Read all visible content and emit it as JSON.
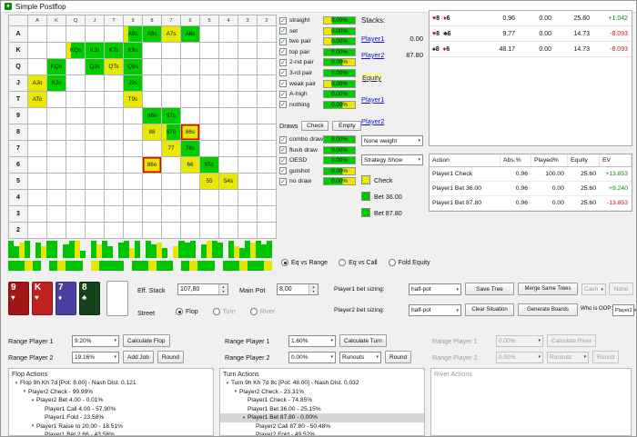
{
  "window": {
    "title": "Simple Postflop"
  },
  "icons": {
    "check": "✓",
    "dropdown_arrow": "▾",
    "spin_up": "▲",
    "spin_down": "▼",
    "tree_expanded": "▾"
  },
  "matrix": {
    "col_headers": [
      "A",
      "K",
      "Q",
      "J",
      "T",
      "9",
      "8",
      "7",
      "6",
      "5",
      "4",
      "3",
      "2"
    ],
    "row_headers": [
      "A",
      "K",
      "Q",
      "J",
      "T",
      "9",
      "8",
      "7",
      "6",
      "5",
      "4",
      "3",
      "2"
    ],
    "cells": [
      {
        "r": 0,
        "c": 5,
        "t": "A9s",
        "s": "gy"
      },
      {
        "r": 0,
        "c": 6,
        "t": "A8s",
        "s": "g"
      },
      {
        "r": 0,
        "c": 7,
        "t": "A7s",
        "s": "y"
      },
      {
        "r": 0,
        "c": 8,
        "t": "A6s",
        "s": "g"
      },
      {
        "r": 1,
        "c": 2,
        "t": "KQs",
        "s": "gy"
      },
      {
        "r": 1,
        "c": 3,
        "t": "KJs",
        "s": "g"
      },
      {
        "r": 1,
        "c": 4,
        "t": "KTs",
        "s": "g"
      },
      {
        "r": 1,
        "c": 5,
        "t": "K9s",
        "s": "g"
      },
      {
        "r": 2,
        "c": 1,
        "t": "KQo",
        "s": "g"
      },
      {
        "r": 2,
        "c": 3,
        "t": "QJs",
        "s": "g"
      },
      {
        "r": 2,
        "c": 4,
        "t": "QTs",
        "s": "y"
      },
      {
        "r": 2,
        "c": 5,
        "t": "Q9s",
        "s": "g"
      },
      {
        "r": 3,
        "c": 0,
        "t": "AJo",
        "s": "y"
      },
      {
        "r": 3,
        "c": 1,
        "t": "KJo",
        "s": "g"
      },
      {
        "r": 3,
        "c": 5,
        "t": "J9s",
        "s": "g"
      },
      {
        "r": 4,
        "c": 0,
        "t": "ATo",
        "s": "y"
      },
      {
        "r": 4,
        "c": 5,
        "t": "T9s",
        "s": "y"
      },
      {
        "r": 5,
        "c": 6,
        "t": "98s",
        "s": "g"
      },
      {
        "r": 5,
        "c": 7,
        "t": "97s",
        "s": "g"
      },
      {
        "r": 6,
        "c": 6,
        "t": "88",
        "s": "y"
      },
      {
        "r": 6,
        "c": 7,
        "t": "87s",
        "s": "gy"
      },
      {
        "r": 6,
        "c": 8,
        "t": "86s",
        "s": "y",
        "red": true
      },
      {
        "r": 7,
        "c": 7,
        "t": "77",
        "s": "y"
      },
      {
        "r": 7,
        "c": 8,
        "t": "76s",
        "s": "g"
      },
      {
        "r": 8,
        "c": 6,
        "t": "86o",
        "s": "y",
        "red": true
      },
      {
        "r": 8,
        "c": 8,
        "t": "66",
        "s": "y"
      },
      {
        "r": 8,
        "c": 9,
        "t": "65s",
        "s": "g"
      },
      {
        "r": 9,
        "c": 9,
        "t": "55",
        "s": "y"
      },
      {
        "r": 9,
        "c": 10,
        "t": "54s",
        "s": "y"
      }
    ]
  },
  "range_bars": {
    "colors": {
      "g": "#00c400",
      "y": "#e6e600"
    },
    "band1": "g9g6y8g9w0g8y6g9g9w0g7g9y9g4w0g9y7g9g6w0g8g9y5g9w0g9g7y8g5w0y6g9g8g9w0g7y9g9g8w0g9y6g5g9y8g9g7g9",
    "band2": "g9g9y9g9w0g9y9g9g9w0y9g9g9g9w0g9g9y9g9g9w0g9y9g9g9w0g9g9y9g9g9y9"
  },
  "categories": {
    "rows": [
      {
        "label": "straight",
        "value": "0.00%",
        "s": "gy"
      },
      {
        "label": "set",
        "value": "0.00%",
        "s": "gy"
      },
      {
        "label": "two pair",
        "value": "0.00%",
        "s": "gy"
      },
      {
        "label": "top pair",
        "value": "0.00%",
        "s": "g"
      },
      {
        "label": "2-nd pair",
        "value": "0.00%",
        "s": "yg"
      },
      {
        "label": "3-rd pair",
        "value": "0.00%",
        "s": "g"
      },
      {
        "label": "weak pair",
        "value": "0.00%",
        "s": "gy"
      },
      {
        "label": "A-high",
        "value": "0.00%",
        "s": "g"
      },
      {
        "label": "nothing",
        "value": "0.00%",
        "s": "yg"
      }
    ],
    "draws_title": "Draws",
    "check_button": "Check",
    "empty_button": "Empty",
    "draw_rows": [
      {
        "label": "combo draw",
        "value": "0.00%",
        "s": "g"
      },
      {
        "label": "flush draw",
        "value": "0.00%",
        "s": "g"
      },
      {
        "label": "OESD",
        "value": "0.00%",
        "s": "g"
      },
      {
        "label": "gutshot",
        "value": "0.00%",
        "s": "yg"
      },
      {
        "label": "no draw",
        "value": "0.00%",
        "s": "yg"
      }
    ]
  },
  "equity_modes": {
    "options": [
      {
        "label": "Eq vs Range",
        "selected": true
      },
      {
        "label": "Eq vs Call",
        "selected": false
      },
      {
        "label": "Fold Equity",
        "selected": false
      }
    ]
  },
  "stacks": {
    "title": "Stacks:",
    "players": [
      {
        "label": "Player1",
        "value": "0.00"
      },
      {
        "label": "Player2",
        "value": "87.80"
      }
    ],
    "equity_link": "Equity",
    "links": [
      "Player1",
      "Player2"
    ],
    "weight_select": "None weight",
    "strategy_select": "Strategy Show",
    "legend": [
      {
        "color": "#e8e800",
        "label": "Check"
      },
      {
        "color": "#00c800",
        "label": "Bet 36.00"
      },
      {
        "color": "#00c800",
        "label": "Bet 87.80"
      }
    ]
  },
  "combo_table": {
    "rows": [
      {
        "cards": [
          {
            "rank": "8",
            "suit": "♥",
            "color": "red"
          },
          {
            "rank": "6",
            "suit": "♦",
            "color": "red"
          }
        ],
        "values": [
          "0.96",
          "0.00",
          "25.60",
          "+1.042"
        ]
      },
      {
        "cards": [
          {
            "rank": "8",
            "suit": "♥",
            "color": "red"
          },
          {
            "rank": "6",
            "suit": "♣",
            "color": "blk"
          }
        ],
        "values": [
          "9.77",
          "0.00",
          "14.73",
          "-8.093"
        ]
      },
      {
        "cards": [
          {
            "rank": "8",
            "suit": "♠",
            "color": "blk"
          },
          {
            "rank": "6",
            "suit": "♦",
            "color": "red"
          }
        ],
        "values": [
          "48.17",
          "0.00",
          "14.73",
          "-8.093"
        ]
      }
    ]
  },
  "action_table": {
    "headers": [
      "Action",
      "Abs.%",
      "Played%",
      "Equity",
      "EV"
    ],
    "rows": [
      {
        "action": "Player1 Check",
        "values": [
          "0.96",
          "100.00",
          "25.60"
        ],
        "ev": "+13.853"
      },
      {
        "action": "Player1 Bet 36.00",
        "values": [
          "0.96",
          "0.00",
          "25.60"
        ],
        "ev": "+9.240"
      },
      {
        "action": "Player1 Bet 87.80",
        "values": [
          "0.96",
          "0.00",
          "25.60"
        ],
        "ev": "-13.853"
      }
    ]
  },
  "board": {
    "cards": [
      {
        "rank": "9",
        "suit": "♥",
        "bg": "#a31616"
      },
      {
        "rank": "K",
        "suit": "♥",
        "bg": "#c02020"
      },
      {
        "rank": "7",
        "suit": "♦",
        "bg": "#4a3f9e"
      },
      {
        "rank": "8",
        "suit": "♣",
        "bg": "#14421a"
      }
    ],
    "eff_stack_label": "Eff. Stack",
    "eff_stack_value": "107,80",
    "main_pot_label": "Main Pot",
    "main_pot_value": "8,00",
    "street_label": "Street",
    "streets": [
      {
        "label": "Flop",
        "selected": true,
        "disabled": false
      },
      {
        "label": "Turn",
        "selected": false,
        "disabled": true
      },
      {
        "label": "River",
        "selected": false,
        "disabled": true
      }
    ]
  },
  "sizing": {
    "p1_label": "Player1 bet sizing:",
    "p1_value": "half-pot",
    "p2_label": "Player2 bet sizing:",
    "p2_value": "half-pot",
    "save_tree": "Save Tree",
    "merge_trees": "Merge Same Trees",
    "cash": "Cash",
    "none": "None",
    "clear_situation": "Clear Situation",
    "generate_boards": "Generate Boards",
    "oop_label": "Who is OOP:",
    "oop_value": "Player2"
  },
  "ranges": {
    "cols": [
      {
        "disabled": false,
        "p1": {
          "label": "Range Player 1",
          "value": "9.20%",
          "button": "Calculate Flop"
        },
        "p2": {
          "label": "Range Player 2",
          "value": "19.16%",
          "buttons": [
            "Add Job",
            "Round"
          ]
        }
      },
      {
        "disabled": false,
        "p1": {
          "label": "Range Player 1",
          "value": "1.60%",
          "button": "Calculate Turn"
        },
        "p2": {
          "label": "Range Player 2",
          "value": "0.00%",
          "dropdown": "Runouts",
          "buttons": [
            "Round"
          ]
        }
      },
      {
        "disabled": true,
        "p1": {
          "label": "Range Player 1",
          "value": "0.00%",
          "button": "Calculate River"
        },
        "p2": {
          "label": "Range Player 2",
          "value": "0.00%",
          "dropdown": "Runouts",
          "buttons": [
            "Round"
          ]
        }
      }
    ]
  },
  "trees": {
    "flop": {
      "title": "Flop Actions",
      "rows": [
        {
          "i": 0,
          "a": true,
          "t": "Flop 9h Kh 7d [Pot: 8.00] - Nash Dist. 0.121"
        },
        {
          "i": 1,
          "a": true,
          "t": "Player2 Check - 99.99%"
        },
        {
          "i": 2,
          "a": true,
          "t": "Player2 Bet 4.00 - 0.01%"
        },
        {
          "i": 3,
          "a": false,
          "t": "Player1 Call 4.00 - 57.90%"
        },
        {
          "i": 3,
          "a": false,
          "t": "Player1 Fold - 23.58%"
        },
        {
          "i": 2,
          "a": true,
          "t": "Player1 Raise to 20.00 - 18.51%"
        },
        {
          "i": 3,
          "a": false,
          "t": "Player1 Bet 2.66 - 43.56%"
        }
      ]
    },
    "turn": {
      "title": "Turn Actions",
      "rows": [
        {
          "i": 0,
          "a": true,
          "t": "Turn 9h Kh 7d 8c [Pot: 48.00] - Nash Dist. 0.032"
        },
        {
          "i": 1,
          "a": true,
          "t": "Player2 Check - 23.31%"
        },
        {
          "i": 2,
          "a": false,
          "t": "Player1 Check - 74.85%"
        },
        {
          "i": 2,
          "a": false,
          "t": "Player1 Bet 36.00 - 25.15%"
        },
        {
          "i": 2,
          "a": true,
          "t": "Player1 Bet 87.80 - 0.00%",
          "sel": true
        },
        {
          "i": 3,
          "a": false,
          "t": "Player2 Call 87.80 - 50.48%"
        },
        {
          "i": 3,
          "a": false,
          "t": "Player2 Fold - 49.52%"
        }
      ]
    },
    "river": {
      "title": "River Actions",
      "rows": []
    }
  }
}
